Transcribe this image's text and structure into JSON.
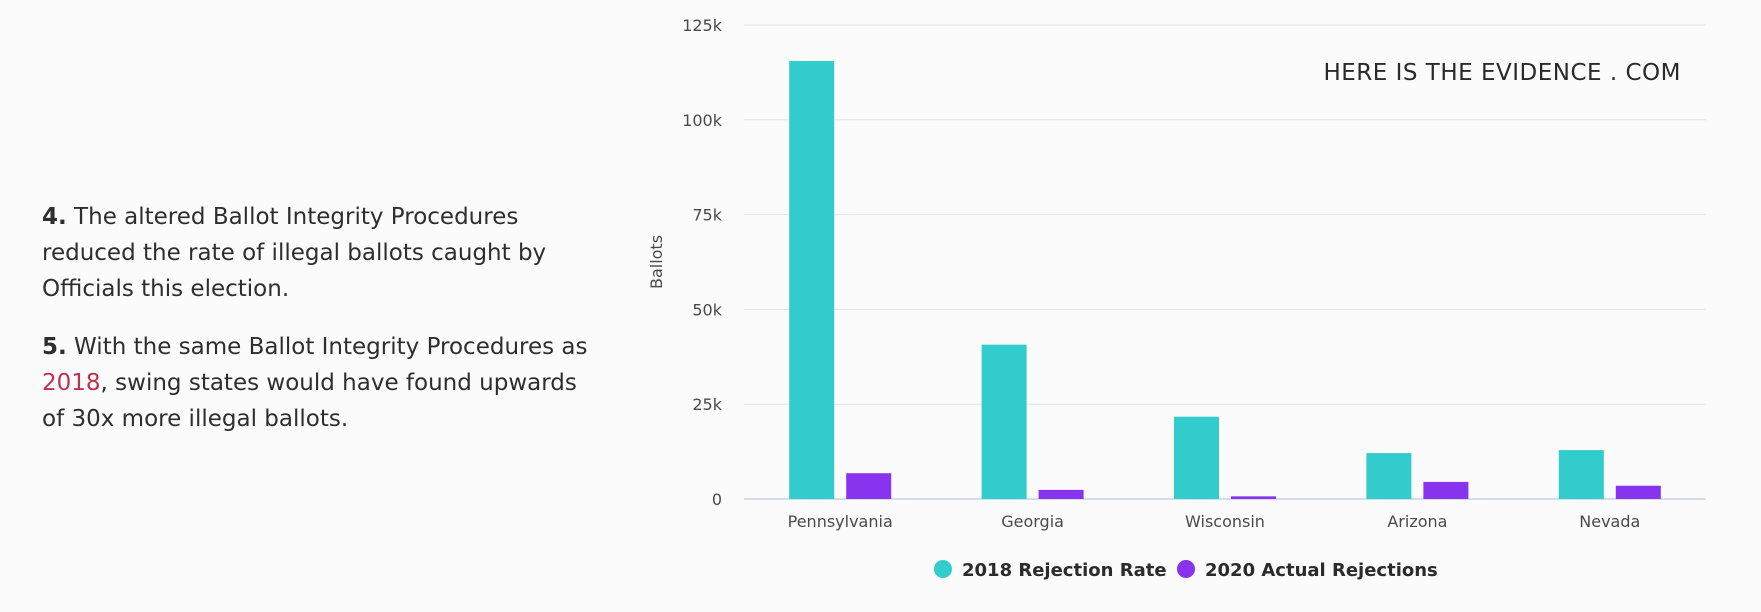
{
  "text": {
    "p4_number": "4.",
    "p4_text": " The altered Ballot Integrity Procedures reduced the rate of illegal ballots caught by Officials this election.",
    "p5_number": "5.",
    "p5_before": " With the same Ballot Integrity Procedures as ",
    "p5_link": "2018",
    "p5_after": ", swing states would have found upwards of 30x more illegal ballots."
  },
  "colors": {
    "series_2018": "#33cccc",
    "series_2020": "#8833ee",
    "link": "#c0314d"
  },
  "chart_data": {
    "type": "bar",
    "watermark": "HERE IS THE EVIDENCE . COM",
    "ylabel": "Ballots",
    "xlabel": "",
    "ylim": [
      0,
      125000
    ],
    "yticks": [
      0,
      25000,
      50000,
      75000,
      100000,
      125000
    ],
    "ytick_labels": [
      "0",
      "25k",
      "50k",
      "75k",
      "100k",
      "125k"
    ],
    "grid": true,
    "legend_position": "bottom-center",
    "categories": [
      "Pennsylvania",
      "Georgia",
      "Wisconsin",
      "Arizona",
      "Nevada"
    ],
    "series": [
      {
        "name": "2018 Rejection Rate",
        "color": "#33cccc",
        "values": [
          115500,
          40700,
          21700,
          12100,
          12900
        ]
      },
      {
        "name": "2020 Actual Rejections",
        "color": "#8833ee",
        "values": [
          6800,
          2400,
          700,
          4500,
          3500
        ]
      }
    ]
  }
}
